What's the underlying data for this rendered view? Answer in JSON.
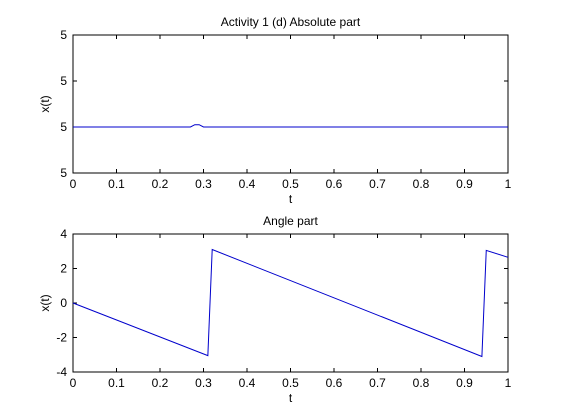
{
  "chart_data": [
    {
      "type": "line",
      "title": "Activity 1 (d) Absolute part",
      "xlabel": "t",
      "ylabel": "x(t)",
      "xlim": [
        0,
        1
      ],
      "ylim": [
        4.9999,
        5.0002
      ],
      "grid": false,
      "xticks": [
        "0",
        "0.1",
        "0.2",
        "0.3",
        "0.4",
        "0.5",
        "0.6",
        "0.7",
        "0.8",
        "0.9",
        "1"
      ],
      "yticks": [
        "5",
        "5",
        "5",
        "5"
      ],
      "line_color": "#0000cc",
      "series": [
        {
          "x": [
            0,
            0.27,
            0.28,
            0.29,
            0.3,
            1.0
          ],
          "y": [
            5.0,
            5.0,
            5.000005,
            5.000005,
            5.0,
            5.0
          ]
        }
      ]
    },
    {
      "type": "line",
      "title": "Angle part",
      "xlabel": "t",
      "ylabel": "x(t)",
      "xlim": [
        0,
        1
      ],
      "ylim": [
        -4,
        4
      ],
      "grid": false,
      "xticks": [
        "0",
        "0.1",
        "0.2",
        "0.3",
        "0.4",
        "0.5",
        "0.6",
        "0.7",
        "0.8",
        "0.9",
        "1"
      ],
      "yticks": [
        "-4",
        "-2",
        "0",
        "2",
        "4"
      ],
      "line_color": "#0000cc",
      "series": [
        {
          "x": [
            0,
            0.31,
            0.32,
            0.94,
            0.95,
            1.0
          ],
          "y": [
            0,
            -3.05,
            3.1,
            -3.1,
            3.05,
            2.65
          ]
        }
      ]
    }
  ]
}
